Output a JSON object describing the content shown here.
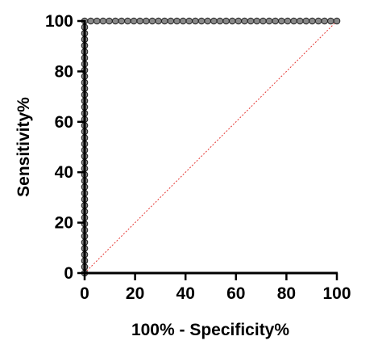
{
  "chart_data": {
    "type": "line",
    "xlabel": "100% - Specificity%",
    "ylabel": "Sensitivity%",
    "xlim": [
      0,
      100
    ],
    "ylim": [
      0,
      100
    ],
    "x_ticks": [
      "0",
      "20",
      "40",
      "60",
      "80",
      "100"
    ],
    "y_ticks": [
      "0",
      "20",
      "40",
      "60",
      "80",
      "100"
    ],
    "grid": false,
    "series": [
      {
        "kind": "roc-curve",
        "color": "#000000",
        "marker_color": "#888888",
        "points": [
          [
            0,
            0
          ],
          [
            0,
            2.44
          ],
          [
            0,
            4.88
          ],
          [
            0,
            7.32
          ],
          [
            0,
            9.76
          ],
          [
            0,
            12.2
          ],
          [
            0,
            14.63
          ],
          [
            0,
            17.07
          ],
          [
            0,
            19.51
          ],
          [
            0,
            21.95
          ],
          [
            0,
            24.39
          ],
          [
            0,
            26.83
          ],
          [
            0,
            29.27
          ],
          [
            0,
            31.71
          ],
          [
            0,
            34.15
          ],
          [
            0,
            36.59
          ],
          [
            0,
            39.02
          ],
          [
            0,
            41.46
          ],
          [
            0,
            43.9
          ],
          [
            0,
            46.34
          ],
          [
            0,
            48.78
          ],
          [
            0,
            51.22
          ],
          [
            0,
            53.66
          ],
          [
            0,
            56.1
          ],
          [
            0,
            58.54
          ],
          [
            0,
            60.98
          ],
          [
            0,
            63.41
          ],
          [
            0,
            65.85
          ],
          [
            0,
            68.29
          ],
          [
            0,
            70.73
          ],
          [
            0,
            73.17
          ],
          [
            0,
            75.61
          ],
          [
            0,
            78.05
          ],
          [
            0,
            80.49
          ],
          [
            0,
            82.93
          ],
          [
            0,
            85.37
          ],
          [
            0,
            87.8
          ],
          [
            0,
            90.24
          ],
          [
            0,
            92.68
          ],
          [
            0,
            95.12
          ],
          [
            0,
            97.56
          ],
          [
            0,
            100
          ],
          [
            2.44,
            100
          ],
          [
            4.88,
            100
          ],
          [
            7.32,
            100
          ],
          [
            9.76,
            100
          ],
          [
            12.2,
            100
          ],
          [
            14.63,
            100
          ],
          [
            17.07,
            100
          ],
          [
            19.51,
            100
          ],
          [
            21.95,
            100
          ],
          [
            24.39,
            100
          ],
          [
            26.83,
            100
          ],
          [
            29.27,
            100
          ],
          [
            31.71,
            100
          ],
          [
            34.15,
            100
          ],
          [
            36.59,
            100
          ],
          [
            39.02,
            100
          ],
          [
            41.46,
            100
          ],
          [
            43.9,
            100
          ],
          [
            46.34,
            100
          ],
          [
            48.78,
            100
          ],
          [
            51.22,
            100
          ],
          [
            53.66,
            100
          ],
          [
            56.1,
            100
          ],
          [
            58.54,
            100
          ],
          [
            60.98,
            100
          ],
          [
            63.41,
            100
          ],
          [
            65.85,
            100
          ],
          [
            68.29,
            100
          ],
          [
            70.73,
            100
          ],
          [
            73.17,
            100
          ],
          [
            75.61,
            100
          ],
          [
            78.05,
            100
          ],
          [
            80.49,
            100
          ],
          [
            82.93,
            100
          ],
          [
            85.37,
            100
          ],
          [
            87.8,
            100
          ],
          [
            90.24,
            100
          ],
          [
            92.68,
            100
          ],
          [
            95.12,
            100
          ],
          [
            97.56,
            100
          ],
          [
            100,
            100
          ]
        ]
      },
      {
        "kind": "reference-diagonal",
        "color": "#e53935",
        "style": "dotted",
        "points": [
          [
            0,
            0
          ],
          [
            100,
            100
          ]
        ]
      }
    ]
  }
}
